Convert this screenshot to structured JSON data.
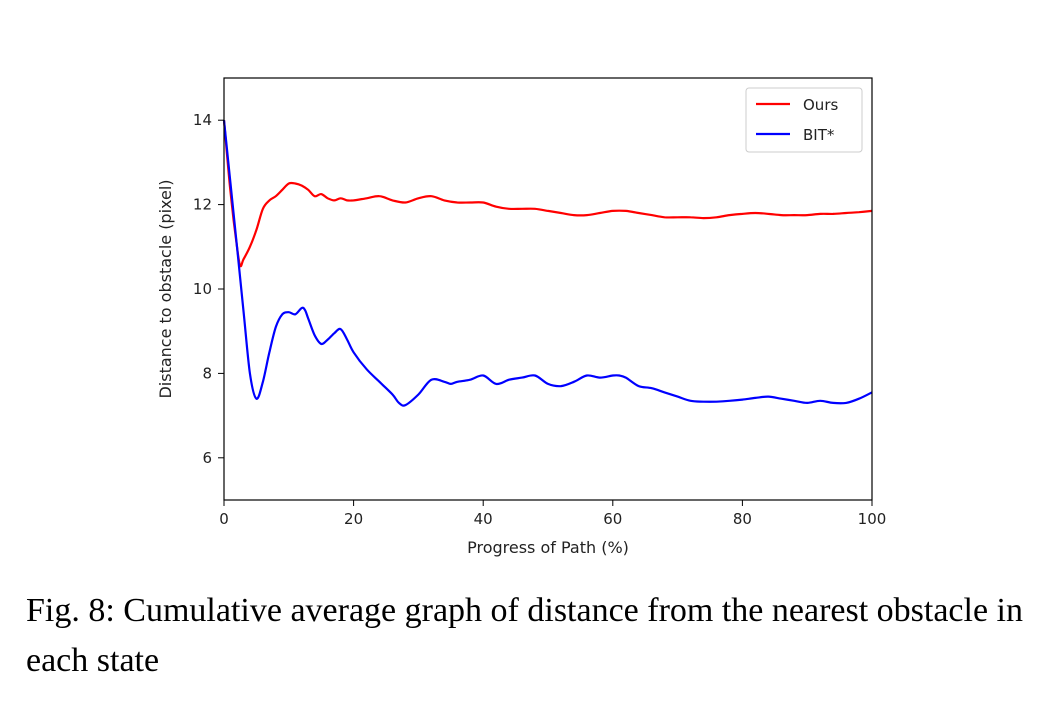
{
  "chart_data": {
    "type": "line",
    "title": "",
    "xlabel": "Progress of Path (%)",
    "ylabel": "Distance to obstacle (pixel)",
    "xlim": [
      0,
      100
    ],
    "ylim": [
      5,
      15
    ],
    "xticks": [
      0,
      20,
      40,
      60,
      80,
      100
    ],
    "yticks": [
      6,
      8,
      10,
      12,
      14
    ],
    "grid": false,
    "legend": "top-right",
    "series": [
      {
        "name": "Ours",
        "color": "#ff0000",
        "x": [
          0,
          1,
          2,
          2.5,
          3,
          4,
          5,
          6,
          7,
          8,
          9,
          10,
          11,
          12,
          13,
          14,
          15,
          16,
          17,
          18,
          19,
          20,
          22,
          24,
          26,
          28,
          30,
          32,
          34,
          36,
          38,
          40,
          42,
          44,
          46,
          48,
          50,
          52,
          54,
          56,
          58,
          60,
          62,
          64,
          66,
          68,
          70,
          72,
          74,
          76,
          78,
          80,
          82,
          84,
          86,
          88,
          90,
          92,
          94,
          96,
          98,
          100
        ],
        "y": [
          14.0,
          12.3,
          11.0,
          10.55,
          10.7,
          11.0,
          11.4,
          11.9,
          12.1,
          12.2,
          12.35,
          12.5,
          12.5,
          12.45,
          12.35,
          12.2,
          12.25,
          12.15,
          12.1,
          12.15,
          12.1,
          12.1,
          12.15,
          12.2,
          12.1,
          12.05,
          12.15,
          12.2,
          12.1,
          12.05,
          12.05,
          12.05,
          11.95,
          11.9,
          11.9,
          11.9,
          11.85,
          11.8,
          11.75,
          11.75,
          11.8,
          11.85,
          11.85,
          11.8,
          11.75,
          11.7,
          11.7,
          11.7,
          11.68,
          11.7,
          11.75,
          11.78,
          11.8,
          11.78,
          11.75,
          11.75,
          11.75,
          11.78,
          11.78,
          11.8,
          11.82,
          11.85
        ]
      },
      {
        "name": "BIT*",
        "color": "#0000ff",
        "x": [
          0,
          1,
          2,
          3,
          4,
          5,
          6,
          7,
          8,
          9,
          10,
          11,
          12,
          12.5,
          13,
          14,
          15,
          16,
          17,
          18,
          19,
          20,
          22,
          24,
          26,
          27,
          28,
          30,
          32,
          34,
          35,
          36,
          38,
          40,
          42,
          44,
          46,
          48,
          50,
          52,
          54,
          56,
          58,
          60,
          61,
          62,
          64,
          66,
          68,
          70,
          72,
          74,
          76,
          78,
          80,
          82,
          84,
          86,
          88,
          90,
          92,
          94,
          96,
          98,
          100
        ],
        "y": [
          14.0,
          12.5,
          11.0,
          9.5,
          8.0,
          7.4,
          7.8,
          8.5,
          9.1,
          9.4,
          9.45,
          9.4,
          9.55,
          9.5,
          9.3,
          8.9,
          8.7,
          8.8,
          8.95,
          9.05,
          8.8,
          8.5,
          8.1,
          7.8,
          7.5,
          7.3,
          7.25,
          7.5,
          7.85,
          7.8,
          7.75,
          7.8,
          7.85,
          7.95,
          7.75,
          7.85,
          7.9,
          7.95,
          7.75,
          7.7,
          7.8,
          7.95,
          7.9,
          7.95,
          7.95,
          7.9,
          7.7,
          7.65,
          7.55,
          7.45,
          7.35,
          7.33,
          7.33,
          7.35,
          7.38,
          7.42,
          7.45,
          7.4,
          7.35,
          7.3,
          7.35,
          7.3,
          7.3,
          7.4,
          7.55
        ]
      }
    ]
  },
  "caption": "Fig. 8: Cumulative average graph of distance from the nearest obstacle in each state"
}
